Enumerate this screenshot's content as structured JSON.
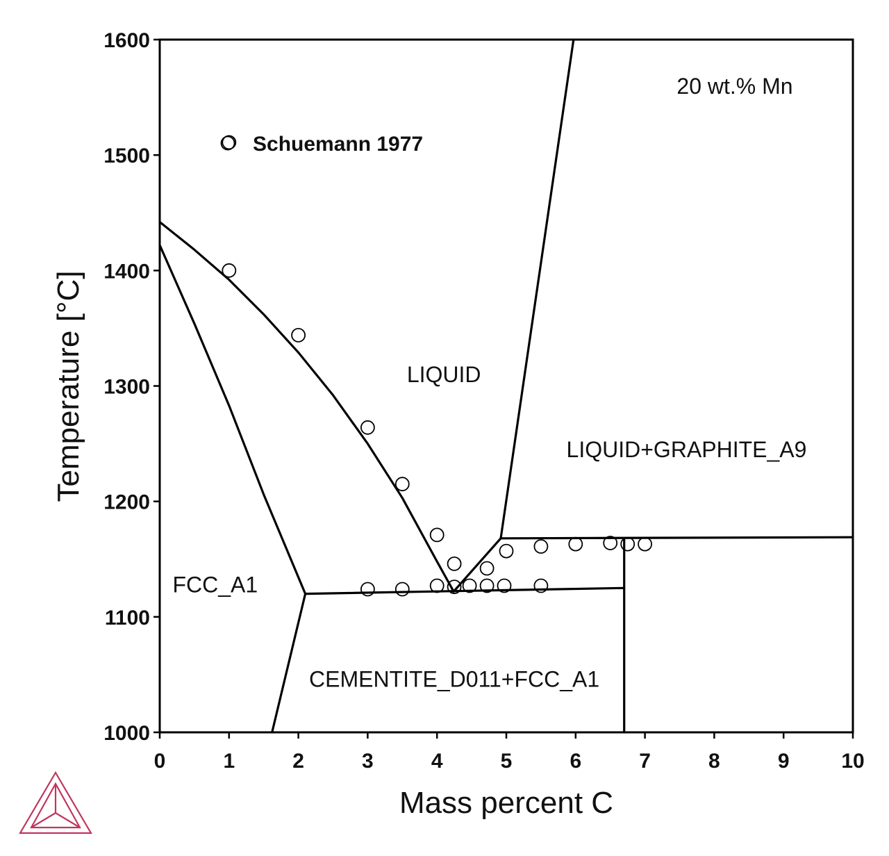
{
  "chart_data": {
    "type": "scatter",
    "xlabel": "Mass percent C",
    "ylabel": "Temperature [°C]",
    "xlim": [
      0,
      10
    ],
    "ylim": [
      1000,
      1600
    ],
    "x_ticks": [
      "0",
      "1",
      "2",
      "3",
      "4",
      "5",
      "6",
      "7",
      "8",
      "9",
      "10"
    ],
    "y_ticks": [
      "1000",
      "1100",
      "1200",
      "1300",
      "1400",
      "1500",
      "1600"
    ],
    "grid": false,
    "annotation": "20 wt.% Mn",
    "legend": {
      "position": "top-left",
      "entries": [
        {
          "name": "Schuemann 1977",
          "marker": "open-circle"
        }
      ]
    },
    "region_labels": [
      {
        "text": "LIQUID",
        "x": 4.1,
        "y": 1310
      },
      {
        "text": "LIQUID+GRAPHITE_A9",
        "x": 7.6,
        "y": 1245
      },
      {
        "text": "FCC_A1",
        "x": 0.8,
        "y": 1128
      },
      {
        "text": "CEMENTITE_D011+FCC_A1",
        "x": 4.25,
        "y": 1046
      }
    ],
    "phase_boundaries": [
      {
        "id": "liquidus-fcc",
        "x": [
          0,
          0.5,
          1.0,
          1.5,
          2.0,
          2.5,
          3.0,
          3.5,
          4.0,
          4.24
        ],
        "y": [
          1442,
          1418,
          1392,
          1362,
          1329,
          1292,
          1250,
          1203,
          1148,
          1122
        ]
      },
      {
        "id": "solidus-fcc",
        "x": [
          0,
          0.5,
          1.0,
          1.5,
          2.1
        ],
        "y": [
          1422,
          1354,
          1283,
          1206,
          1120
        ]
      },
      {
        "id": "fcc-solvus",
        "x": [
          2.1,
          1.62
        ],
        "y": [
          1120,
          1000
        ]
      },
      {
        "id": "eutectic-line",
        "x": [
          2.1,
          6.7
        ],
        "y": [
          1120,
          1125
        ]
      },
      {
        "id": "liquidus-graphite-low",
        "x": [
          4.24,
          4.92
        ],
        "y": [
          1122,
          1168
        ]
      },
      {
        "id": "liquidus-graphite-high",
        "x": [
          4.92,
          5.97
        ],
        "y": [
          1168,
          1600
        ]
      },
      {
        "id": "graphite-eutectic-line",
        "x": [
          4.92,
          10
        ],
        "y": [
          1168,
          1169
        ]
      },
      {
        "id": "cementite-line",
        "x": [
          6.7,
          6.7
        ],
        "y": [
          1000,
          1168
        ]
      }
    ],
    "series": [
      {
        "name": "Schuemann 1977",
        "x": [
          1.0,
          1.0,
          2.0,
          3.0,
          3.5,
          4.0,
          4.25,
          4.72,
          5.0,
          5.5,
          6.0,
          6.5,
          6.75,
          7.0,
          3.0,
          3.5,
          4.0,
          4.25,
          4.47,
          4.72,
          4.97,
          5.5
        ],
        "y": [
          1511,
          1400,
          1344,
          1264,
          1215,
          1171,
          1146,
          1142,
          1157,
          1161,
          1163,
          1164,
          1163,
          1163,
          1124,
          1124,
          1127,
          1126,
          1127,
          1127,
          1127,
          1127
        ]
      }
    ]
  },
  "logo": {
    "name": "triangle-logo-icon",
    "color": "#c0365e"
  }
}
